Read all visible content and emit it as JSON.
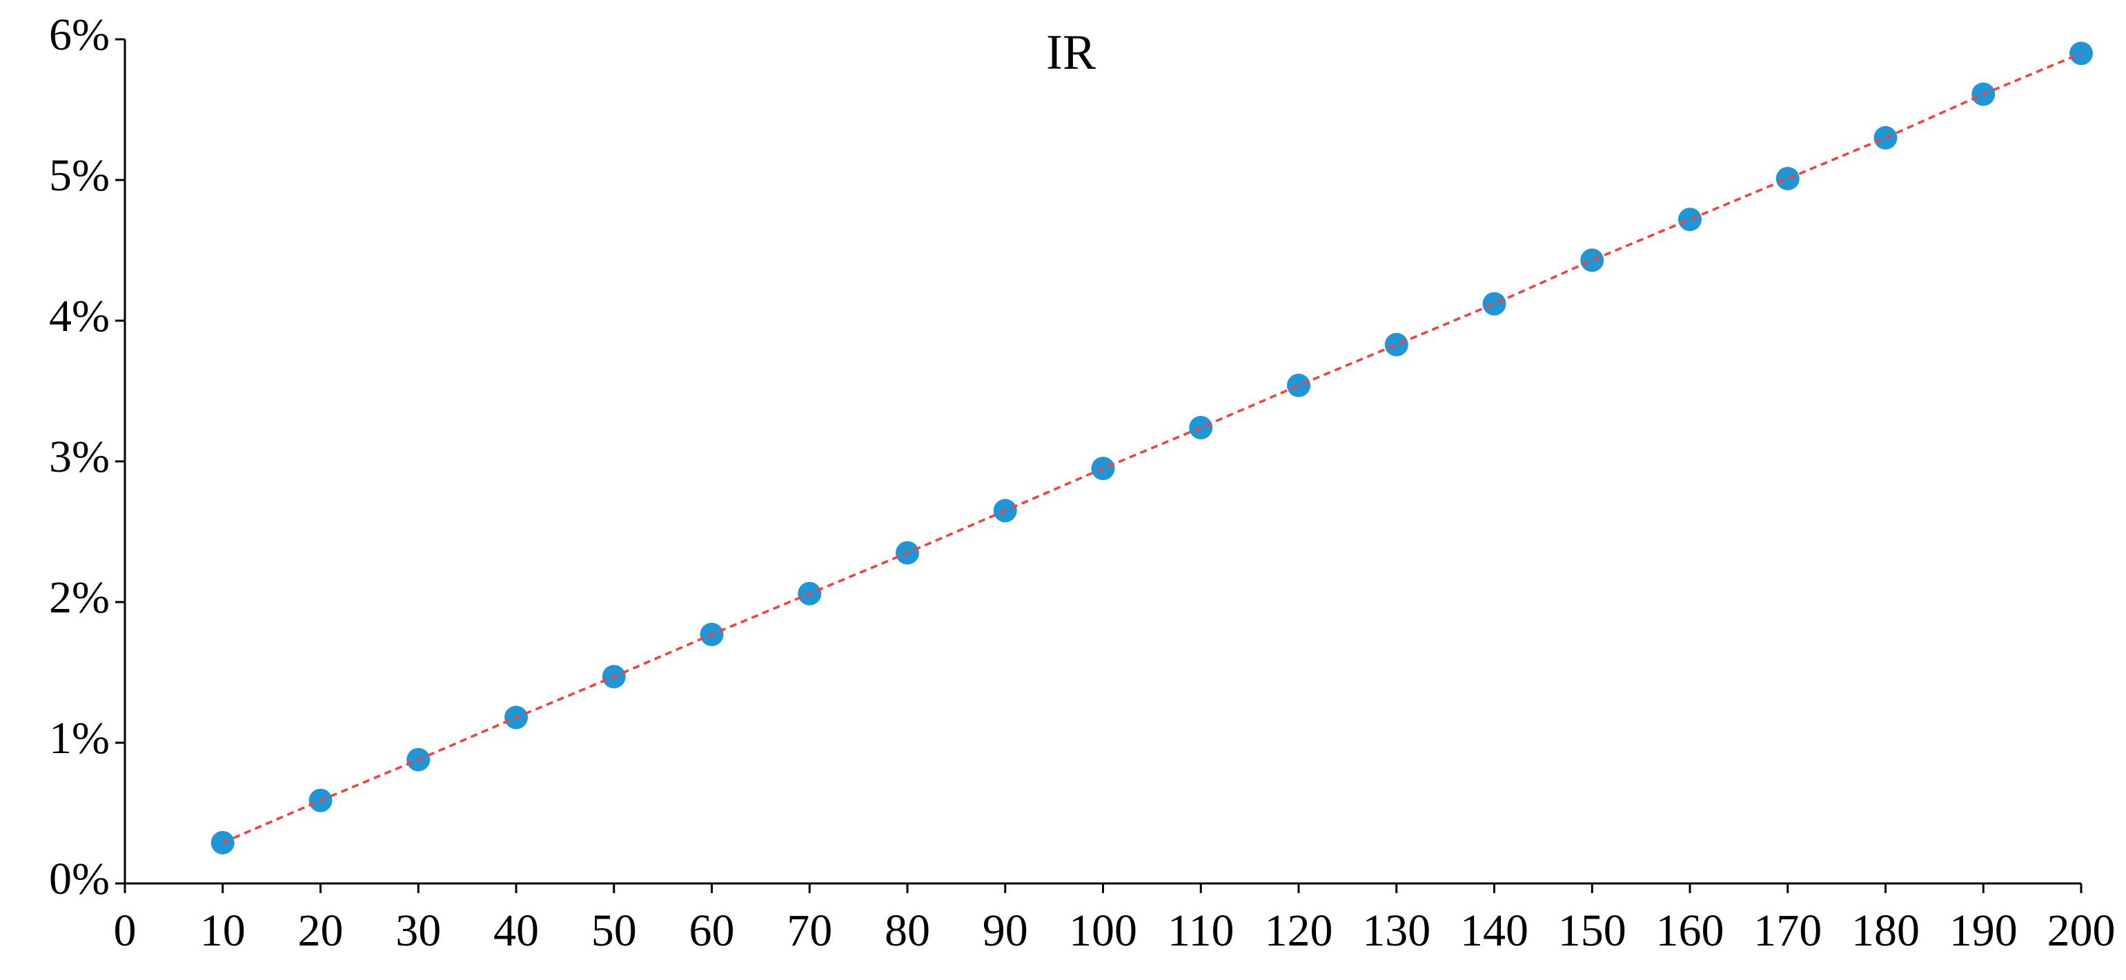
{
  "chart_data": {
    "type": "scatter",
    "title": "IR",
    "x": [
      10,
      20,
      30,
      40,
      50,
      60,
      70,
      80,
      90,
      100,
      110,
      120,
      130,
      140,
      150,
      160,
      170,
      180,
      190,
      200
    ],
    "values": [
      0.29,
      0.59,
      0.88,
      1.18,
      1.47,
      1.77,
      2.06,
      2.35,
      2.65,
      2.95,
      3.24,
      3.54,
      3.83,
      4.12,
      4.43,
      4.72,
      5.01,
      5.3,
      5.61,
      5.9
    ],
    "color": "#1f97d6",
    "line_color": "#ff3b3b",
    "line_style": "dashed",
    "xlim": [
      0,
      200
    ],
    "xticks": [
      0,
      10,
      20,
      30,
      40,
      50,
      60,
      70,
      80,
      90,
      100,
      110,
      120,
      130,
      140,
      150,
      160,
      170,
      180,
      190,
      200
    ],
    "ylim": [
      0,
      6
    ],
    "yticks": [
      {
        "value": 0,
        "label": "0%"
      },
      {
        "value": 1,
        "label": "1%"
      },
      {
        "value": 2,
        "label": "2%"
      },
      {
        "value": 3,
        "label": "3%"
      },
      {
        "value": 4,
        "label": "4%"
      },
      {
        "value": 5,
        "label": "5%"
      },
      {
        "value": 6,
        "label": "6%"
      }
    ],
    "grid": false
  }
}
